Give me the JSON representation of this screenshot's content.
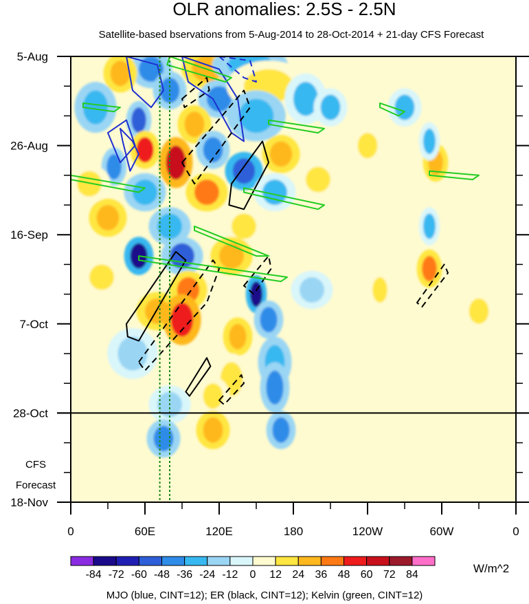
{
  "chart_data": {
    "type": "heatmap",
    "title": "OLR anomalies: 2.5S - 2.5N",
    "subtitle": "Satellite-based bservations from 5-Aug-2014 to 28-Oct-2014 + 21-day CFS Forecast",
    "x_ticks": [
      {
        "label": "0",
        "lon": 0
      },
      {
        "label": "60E",
        "lon": 60
      },
      {
        "label": "120E",
        "lon": 120
      },
      {
        "label": "180",
        "lon": 180
      },
      {
        "label": "120W",
        "lon": 240
      },
      {
        "label": "60W",
        "lon": 300
      },
      {
        "label": "0",
        "lon": 360
      }
    ],
    "y_ticks": [
      {
        "label": "5-Aug",
        "day": 0
      },
      {
        "label": "26-Aug",
        "day": 21
      },
      {
        "label": "16-Sep",
        "day": 42
      },
      {
        "label": "7-Oct",
        "day": 63
      },
      {
        "label": "28-Oct",
        "day": 84
      },
      {
        "label": "18-Nov",
        "day": 105
      }
    ],
    "xlim": [
      0,
      360
    ],
    "ylim": [
      0,
      105
    ],
    "observation_end_day": 84,
    "forecast_label_line1": "CFS",
    "forecast_label_line2": "Forecast",
    "colorbar": {
      "units": "W/m^2",
      "labels": [
        "-84",
        "-72",
        "-60",
        "-48",
        "-36",
        "-24",
        "-12",
        "0",
        "12",
        "24",
        "36",
        "48",
        "60",
        "72",
        "84"
      ],
      "colors": [
        "#8a2be2",
        "#1a0a8a",
        "#1f1fb4",
        "#2e5fd8",
        "#2f8ce8",
        "#37b8f0",
        "#9ad6f4",
        "#d9f6fa",
        "#fffbd0",
        "#ffe640",
        "#ffb81e",
        "#ff7a14",
        "#ee1c1c",
        "#c8101c",
        "#9a1a2a",
        "#ff6ec8"
      ]
    },
    "overlay_caption": "MJO (blue, CINT=12); ER (black, CINT=12); Kelvin (green, CINT=12)",
    "reference_lines_lon": [
      72,
      80
    ],
    "anomaly_patches": [
      {
        "lon": 65,
        "day": 3,
        "rl": 10,
        "rd": 3,
        "value": -40
      },
      {
        "lon": 40,
        "day": 4,
        "rl": 8,
        "rd": 3,
        "value": 30
      },
      {
        "lon": 110,
        "day": 3,
        "rl": 12,
        "rd": 3,
        "value": 30
      },
      {
        "lon": 145,
        "day": 2,
        "rl": 18,
        "rd": 3,
        "value": -30
      },
      {
        "lon": 80,
        "day": 8,
        "rl": 8,
        "rd": 3,
        "value": -45
      },
      {
        "lon": 120,
        "day": 10,
        "rl": 10,
        "rd": 3,
        "value": -40
      },
      {
        "lon": 160,
        "day": 7,
        "rl": 20,
        "rd": 4,
        "value": 20
      },
      {
        "lon": 190,
        "day": 10,
        "rl": 10,
        "rd": 4,
        "value": -24
      },
      {
        "lon": 20,
        "day": 12,
        "rl": 10,
        "rd": 4,
        "value": -30
      },
      {
        "lon": 55,
        "day": 15,
        "rl": 6,
        "rd": 3,
        "value": -50
      },
      {
        "lon": 100,
        "day": 16,
        "rl": 8,
        "rd": 3,
        "value": 35
      },
      {
        "lon": 150,
        "day": 14,
        "rl": 14,
        "rd": 4,
        "value": -30
      },
      {
        "lon": 210,
        "day": 12,
        "rl": 8,
        "rd": 3,
        "value": -24
      },
      {
        "lon": 60,
        "day": 22,
        "rl": 7,
        "rd": 3,
        "value": 50
      },
      {
        "lon": 85,
        "day": 25,
        "rl": 8,
        "rd": 4,
        "value": 70
      },
      {
        "lon": 35,
        "day": 26,
        "rl": 6,
        "rd": 3,
        "value": -40
      },
      {
        "lon": 140,
        "day": 27,
        "rl": 9,
        "rd": 3,
        "value": -55
      },
      {
        "lon": 170,
        "day": 23,
        "rl": 9,
        "rd": 3,
        "value": 30
      },
      {
        "lon": 115,
        "day": 22,
        "rl": 8,
        "rd": 3,
        "value": -36
      },
      {
        "lon": 15,
        "day": 30,
        "rl": 10,
        "rd": 3,
        "value": 24
      },
      {
        "lon": 60,
        "day": 32,
        "rl": 10,
        "rd": 3,
        "value": -30
      },
      {
        "lon": 110,
        "day": 32,
        "rl": 10,
        "rd": 3,
        "value": 40
      },
      {
        "lon": 165,
        "day": 32,
        "rl": 10,
        "rd": 3,
        "value": -24
      },
      {
        "lon": 200,
        "day": 29,
        "rl": 10,
        "rd": 3,
        "value": 24
      },
      {
        "lon": 30,
        "day": 38,
        "rl": 9,
        "rd": 3,
        "value": 30
      },
      {
        "lon": 80,
        "day": 40,
        "rl": 10,
        "rd": 3,
        "value": -30
      },
      {
        "lon": 140,
        "day": 40,
        "rl": 10,
        "rd": 3,
        "value": 24
      },
      {
        "lon": 55,
        "day": 47,
        "rl": 7,
        "rd": 3,
        "value": -72
      },
      {
        "lon": 90,
        "day": 47,
        "rl": 10,
        "rd": 3,
        "value": -48
      },
      {
        "lon": 130,
        "day": 47,
        "rl": 10,
        "rd": 3,
        "value": 30
      },
      {
        "lon": 25,
        "day": 52,
        "rl": 10,
        "rd": 3,
        "value": 24
      },
      {
        "lon": 95,
        "day": 55,
        "rl": 9,
        "rd": 3,
        "value": 45
      },
      {
        "lon": 150,
        "day": 56,
        "rl": 5,
        "rd": 3,
        "value": -72
      },
      {
        "lon": 195,
        "day": 55,
        "rl": 10,
        "rd": 3,
        "value": -20
      },
      {
        "lon": 70,
        "day": 60,
        "rl": 10,
        "rd": 3,
        "value": 36
      },
      {
        "lon": 90,
        "day": 62,
        "rl": 9,
        "rd": 4,
        "value": 55
      },
      {
        "lon": 160,
        "day": 62,
        "rl": 7,
        "rd": 3,
        "value": -36
      },
      {
        "lon": 135,
        "day": 66,
        "rl": 7,
        "rd": 3,
        "value": 36
      },
      {
        "lon": 50,
        "day": 70,
        "rl": 12,
        "rd": 4,
        "value": -20
      },
      {
        "lon": 165,
        "day": 72,
        "rl": 8,
        "rd": 4,
        "value": -30
      },
      {
        "lon": 130,
        "day": 76,
        "rl": 9,
        "rd": 4,
        "value": 24
      },
      {
        "lon": 165,
        "day": 78,
        "rl": 7,
        "rd": 4,
        "value": -45
      },
      {
        "lon": 115,
        "day": 80,
        "rl": 8,
        "rd": 3,
        "value": 24
      },
      {
        "lon": 80,
        "day": 82,
        "rl": 10,
        "rd": 3,
        "value": -20
      },
      {
        "lon": 115,
        "day": 88,
        "rl": 8,
        "rd": 3,
        "value": 30
      },
      {
        "lon": 170,
        "day": 88,
        "rl": 7,
        "rd": 3,
        "value": -36
      },
      {
        "lon": 75,
        "day": 90,
        "rl": 8,
        "rd": 3,
        "value": -40
      },
      {
        "lon": 290,
        "day": 50,
        "rl": 6,
        "rd": 3,
        "value": 45
      },
      {
        "lon": 290,
        "day": 40,
        "rl": 5,
        "rd": 3,
        "value": -24
      },
      {
        "lon": 295,
        "day": 25,
        "rl": 6,
        "rd": 3,
        "value": 30
      },
      {
        "lon": 290,
        "day": 20,
        "rl": 5,
        "rd": 3,
        "value": -24
      },
      {
        "lon": 270,
        "day": 12,
        "rl": 8,
        "rd": 3,
        "value": -24
      },
      {
        "lon": 240,
        "day": 21,
        "rl": 8,
        "rd": 3,
        "value": 20
      },
      {
        "lon": 330,
        "day": 60,
        "rl": 8,
        "rd": 3,
        "value": 20
      },
      {
        "lon": 250,
        "day": 55,
        "rl": 6,
        "rd": 3,
        "value": 20
      }
    ],
    "mjo_contours": [
      {
        "polyline": [
          [
            40,
            17
          ],
          [
            50,
            20
          ],
          [
            55,
            23
          ],
          [
            48,
            27
          ],
          [
            42,
            20
          ]
        ],
        "dashed": false
      },
      {
        "polyline": [
          [
            30,
            18
          ],
          [
            45,
            15
          ],
          [
            52,
            21
          ],
          [
            40,
            25
          ]
        ],
        "dashed": false
      },
      {
        "polyline": [
          [
            45,
            0
          ],
          [
            70,
            2
          ],
          [
            75,
            8
          ],
          [
            65,
            12
          ],
          [
            50,
            8
          ]
        ],
        "dashed": false
      },
      {
        "polyline": [
          [
            90,
            0
          ],
          [
            120,
            3
          ],
          [
            135,
            10
          ],
          [
            140,
            20
          ],
          [
            130,
            18
          ],
          [
            115,
            10
          ],
          [
            95,
            6
          ]
        ],
        "dashed": false
      },
      {
        "polyline": [
          [
            120,
            0
          ],
          [
            145,
            1
          ],
          [
            150,
            6
          ],
          [
            140,
            5
          ]
        ],
        "dashed": true
      }
    ],
    "er_contours": [
      {
        "polyline": [
          [
            130,
            30
          ],
          [
            155,
            20
          ],
          [
            160,
            25
          ],
          [
            140,
            36
          ],
          [
            128,
            35
          ]
        ],
        "dashed": false
      },
      {
        "polyline": [
          [
            90,
            25
          ],
          [
            140,
            8
          ],
          [
            145,
            12
          ],
          [
            100,
            30
          ]
        ],
        "dashed": true
      },
      {
        "polyline": [
          [
            45,
            63
          ],
          [
            85,
            46
          ],
          [
            93,
            48
          ],
          [
            55,
            67
          ],
          [
            46,
            66
          ]
        ],
        "dashed": false
      },
      {
        "polyline": [
          [
            55,
            72
          ],
          [
            115,
            48
          ],
          [
            120,
            50
          ],
          [
            110,
            58
          ],
          [
            60,
            74
          ]
        ],
        "dashed": true
      },
      {
        "polyline": [
          [
            140,
            54
          ],
          [
            160,
            47
          ],
          [
            162,
            50
          ],
          [
            148,
            56
          ]
        ],
        "dashed": true
      },
      {
        "polyline": [
          [
            93,
            79
          ],
          [
            110,
            71
          ],
          [
            113,
            73
          ],
          [
            96,
            80
          ]
        ],
        "dashed": false
      },
      {
        "polyline": [
          [
            120,
            81
          ],
          [
            138,
            75
          ],
          [
            140,
            77
          ],
          [
            124,
            82
          ]
        ],
        "dashed": true
      },
      {
        "polyline": [
          [
            280,
            58
          ],
          [
            302,
            49
          ],
          [
            305,
            51
          ],
          [
            284,
            59
          ]
        ],
        "dashed": true
      },
      {
        "polyline": [
          [
            90,
            10
          ],
          [
            110,
            5
          ],
          [
            112,
            8
          ],
          [
            92,
            12
          ]
        ],
        "dashed": true
      }
    ],
    "kelvin_contours": [
      {
        "polyline": [
          [
            80,
            0
          ],
          [
            130,
            5
          ],
          [
            125,
            6
          ],
          [
            78,
            2
          ]
        ]
      },
      {
        "polyline": [
          [
            0,
            28
          ],
          [
            60,
            31
          ],
          [
            55,
            32
          ],
          [
            0,
            29
          ]
        ]
      },
      {
        "polyline": [
          [
            140,
            31
          ],
          [
            205,
            35
          ],
          [
            200,
            36
          ],
          [
            140,
            32
          ]
        ]
      },
      {
        "polyline": [
          [
            55,
            47
          ],
          [
            175,
            52
          ],
          [
            170,
            53
          ],
          [
            55,
            48
          ]
        ]
      },
      {
        "polyline": [
          [
            100,
            40
          ],
          [
            160,
            47
          ],
          [
            150,
            47
          ],
          [
            100,
            41
          ]
        ]
      },
      {
        "polyline": [
          [
            160,
            15
          ],
          [
            205,
            17
          ],
          [
            200,
            18
          ],
          [
            160,
            16
          ]
        ]
      },
      {
        "polyline": [
          [
            250,
            11
          ],
          [
            270,
            13
          ],
          [
            265,
            14
          ],
          [
            250,
            12
          ]
        ]
      },
      {
        "polyline": [
          [
            290,
            27
          ],
          [
            330,
            28
          ],
          [
            325,
            29
          ],
          [
            290,
            28
          ]
        ]
      },
      {
        "polyline": [
          [
            10,
            11
          ],
          [
            40,
            12
          ],
          [
            35,
            13
          ],
          [
            10,
            12
          ]
        ]
      }
    ]
  }
}
